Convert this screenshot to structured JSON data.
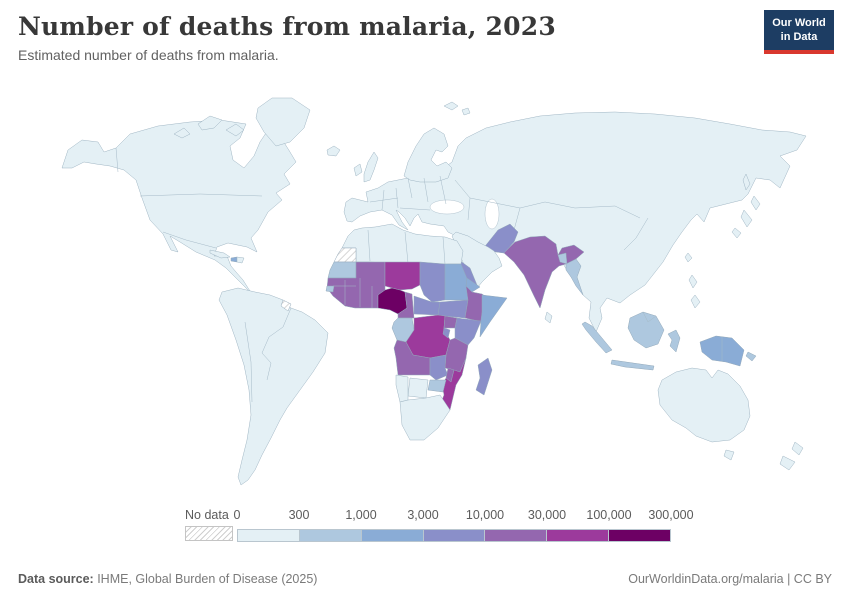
{
  "header": {
    "title": "Number of deaths from malaria, 2023",
    "subtitle": "Estimated number of deaths from malaria.",
    "logo_line1": "Our World",
    "logo_line2": "in Data",
    "logo_bg": "#1d3d63",
    "logo_stripe": "#d9382e"
  },
  "legend": {
    "no_data_label": "No data",
    "tick_labels": [
      "0",
      "300",
      "1,000",
      "3,000",
      "10,000",
      "30,000",
      "100,000",
      "300,000"
    ],
    "bin_colors": [
      "#e4f0f5",
      "#aec8df",
      "#8aacd6",
      "#8a8fc9",
      "#9467af",
      "#9c3a9c",
      "#6d0064"
    ]
  },
  "footer": {
    "datasource_label": "Data source:",
    "datasource_text": " IHME, Global Burden of Disease (2025)",
    "right_text": "OurWorldinData.org/malaria | CC BY"
  },
  "map_regions": {
    "nigeria": 7,
    "niger": 6,
    "dr_congo": 6,
    "mozambique": 6,
    "west_african_belt": 5,
    "cameroon": 5,
    "ethiopia": 5,
    "uganda": 5,
    "tanzania": 5,
    "angola": 5,
    "malawi": 5,
    "india": 5,
    "chad": 4,
    "central_african_republic": 4,
    "south_sudan": 4,
    "kenya": 4,
    "zambia": 4,
    "rwanda_burundi": 4,
    "madagascar": 4,
    "pakistan": 4,
    "yemen": 4,
    "sudan": 3,
    "eritrea": 3,
    "somalia": 3,
    "new_guinea": 3,
    "haiti": 3,
    "mauritania": 2,
    "guinea_bissau": 2,
    "gabon_congo": 2,
    "zimbabwe": 2,
    "myanmar": 2,
    "bangladesh": 2,
    "indonesia": 2,
    "new_britain": 2,
    "western_sahara": "nodata",
    "french_guiana": "nodata"
  },
  "chart_data": {
    "type": "choropleth",
    "title": "Number of deaths from malaria, 2023",
    "subtitle": "Estimated number of deaths from malaria.",
    "year": "2023",
    "unit": "deaths",
    "legend_position": "bottom",
    "no_data_style": "hatched",
    "bin_edges_labels": [
      "0",
      "300",
      "1,000",
      "3,000",
      "10,000",
      "30,000",
      "100,000",
      "300,000"
    ],
    "bins": [
      {
        "range": "0–300",
        "color": "#e4f0f5"
      },
      {
        "range": "300–1,000",
        "color": "#aec8df"
      },
      {
        "range": "1,000–3,000",
        "color": "#8aacd6"
      },
      {
        "range": "3,000–10,000",
        "color": "#8a8fc9"
      },
      {
        "range": "10,000–30,000",
        "color": "#9467af"
      },
      {
        "range": "30,000–100,000",
        "color": "#9c3a9c"
      },
      {
        "range": "100,000–300,000",
        "color": "#6d0064"
      }
    ],
    "values": {
      "Nigeria": "100,000–300,000",
      "Niger": "30,000–100,000",
      "Democratic Republic of Congo": "30,000–100,000",
      "Mozambique": "30,000–100,000",
      "Mali": "10,000–30,000",
      "Burkina Faso": "10,000–30,000",
      "Senegal, Guinea, Sierra Leone, Liberia, Cote d'Ivoire, Ghana, Togo, Benin": "10,000–30,000",
      "Cameroon": "10,000–30,000",
      "Ethiopia": "10,000–30,000",
      "Uganda": "10,000–30,000",
      "Tanzania": "10,000–30,000",
      "Angola": "10,000–30,000",
      "Malawi": "10,000–30,000",
      "India": "10,000–30,000",
      "Chad": "3,000–10,000",
      "Central African Republic": "3,000–10,000",
      "South Sudan": "3,000–10,000",
      "Kenya": "3,000–10,000",
      "Zambia": "3,000–10,000",
      "Rwanda and Burundi": "3,000–10,000",
      "Madagascar": "3,000–10,000",
      "Pakistan": "3,000–10,000",
      "Yemen": "3,000–10,000",
      "Sudan": "1,000–3,000",
      "Eritrea": "1,000–3,000",
      "Somalia": "1,000–3,000",
      "Papua New Guinea and Indonesian Papua": "1,000–3,000",
      "Haiti": "1,000–3,000",
      "Mauritania": "300–1,000",
      "Guinea-Bissau": "300–1,000",
      "Gabon and Congo": "300–1,000",
      "Zimbabwe": "300–1,000",
      "Myanmar": "300–1,000",
      "Bangladesh": "300–1,000",
      "Indonesia": "300–1,000",
      "Americas, Europe, Russia, China, Middle East, North Africa, Southern Africa, Australia, rest of world": "0–300",
      "Western Sahara": "No data",
      "French Guiana": "No data"
    }
  }
}
